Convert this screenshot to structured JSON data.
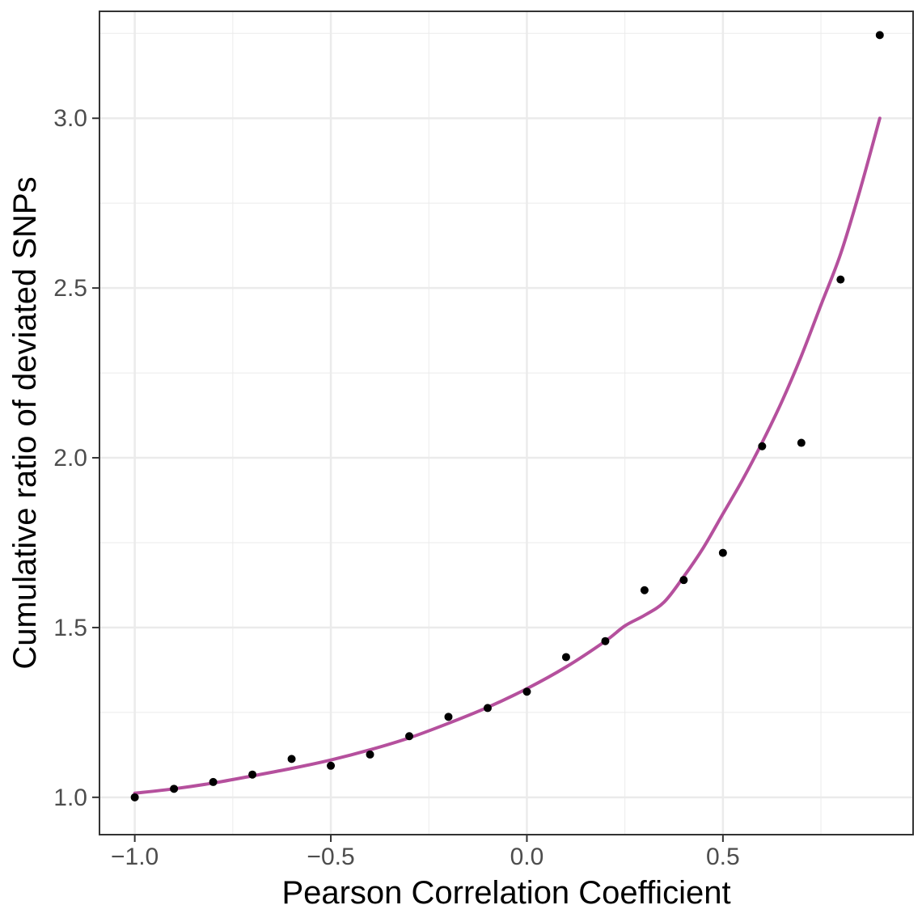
{
  "chart_data": {
    "type": "scatter",
    "title": "",
    "xlabel": "Pearson Correlation Coefficient",
    "ylabel": "Cumulative ratio of deviated SNPs",
    "xlim": [
      -1.09,
      0.985
    ],
    "ylim": [
      0.89,
      3.315
    ],
    "x_ticks": [
      -1.0,
      -0.5,
      0.0,
      0.5
    ],
    "x_tick_labels": [
      "−1.0",
      "−0.5",
      "0.0",
      "0.5"
    ],
    "y_ticks": [
      1.0,
      1.5,
      2.0,
      2.5,
      3.0
    ],
    "y_tick_labels": [
      "1.0",
      "1.5",
      "2.0",
      "2.5",
      "3.0"
    ],
    "grid": true,
    "legend": "none",
    "series": [
      {
        "type": "scatter",
        "color": "#000000",
        "x": [
          -1.0,
          -0.9,
          -0.8,
          -0.7,
          -0.6,
          -0.5,
          -0.4,
          -0.3,
          -0.2,
          -0.1,
          0.0,
          0.1,
          0.2,
          0.3,
          0.4,
          0.5,
          0.6,
          0.7,
          0.8,
          0.9
        ],
        "y": [
          1.0,
          1.025,
          1.045,
          1.067,
          1.113,
          1.093,
          1.126,
          1.18,
          1.237,
          1.263,
          1.311,
          1.413,
          1.46,
          1.61,
          1.64,
          1.72,
          2.034,
          2.044,
          2.525,
          3.245
        ]
      },
      {
        "type": "line",
        "color": "#b5509d",
        "x": [
          -1.0,
          -0.9,
          -0.8,
          -0.7,
          -0.6,
          -0.5,
          -0.4,
          -0.3,
          -0.2,
          -0.1,
          0.0,
          0.1,
          0.2,
          0.25,
          0.3,
          0.35,
          0.4,
          0.45,
          0.5,
          0.55,
          0.6,
          0.65,
          0.7,
          0.75,
          0.8,
          0.85,
          0.9
        ],
        "y": [
          1.012,
          1.025,
          1.042,
          1.063,
          1.085,
          1.11,
          1.14,
          1.175,
          1.218,
          1.265,
          1.32,
          1.384,
          1.46,
          1.505,
          1.536,
          1.575,
          1.65,
          1.735,
          1.835,
          1.935,
          2.045,
          2.165,
          2.3,
          2.45,
          2.6,
          2.79,
          3.0
        ]
      }
    ]
  }
}
